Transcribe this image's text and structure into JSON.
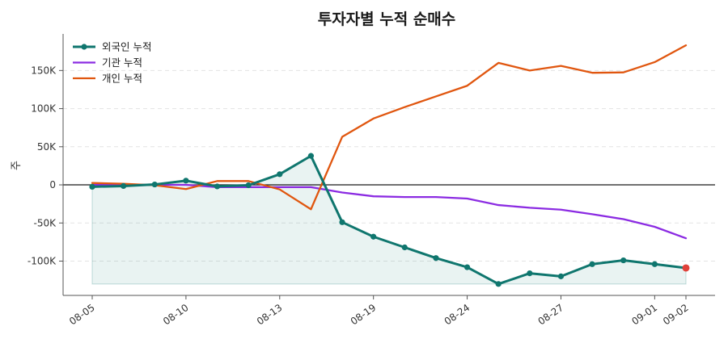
{
  "chart_data": {
    "type": "line",
    "title": "투자자별 누적 순매수",
    "xlabel": "",
    "ylabel": "주",
    "ylim": [
      -145000,
      198000
    ],
    "yticks": [
      -100000,
      -50000,
      0,
      50000,
      100000,
      150000
    ],
    "ytick_labels": [
      "-100K",
      "-50K",
      "0",
      "50K",
      "100K",
      "150K"
    ],
    "x": [
      "08-05",
      "08-06",
      "08-07",
      "08-10",
      "08-11",
      "08-12",
      "08-13",
      "08-14",
      "08-17",
      "08-19",
      "08-20",
      "08-21",
      "08-24",
      "08-25",
      "08-26",
      "08-27",
      "08-28",
      "08-31",
      "09-01",
      "09-02"
    ],
    "xticks": [
      "08-05",
      "08-10",
      "08-13",
      "08-19",
      "08-24",
      "08-27",
      "09-01",
      "09-02"
    ],
    "legend_position": "top-left",
    "grid": true,
    "zero_line": true,
    "series": [
      {
        "name": "외국인 누적",
        "color": "#0f766e",
        "markers": true,
        "fill_area": true,
        "highlight_last_color": "#e0413a",
        "values": [
          -2500,
          -1500,
          500,
          5500,
          -2000,
          -500,
          14000,
          38000,
          -49000,
          -68000,
          -82000,
          -96000,
          -108000,
          -130000,
          -116000,
          -120000,
          -104000,
          -99000,
          -104000,
          -109000
        ]
      },
      {
        "name": "기관 누적",
        "color": "#8b2be2",
        "markers": false,
        "values": [
          0,
          0,
          0,
          0,
          -3000,
          -3000,
          -3000,
          -3000,
          -10000,
          -15000,
          -16000,
          -16000,
          -18000,
          -26500,
          -30000,
          -32500,
          -38500,
          -45000,
          -55000,
          -70000
        ]
      },
      {
        "name": "개인 누적",
        "color": "#e0560f",
        "markers": false,
        "values": [
          2500,
          1500,
          -500,
          -5500,
          5000,
          5000,
          -6000,
          -32000,
          63000,
          87000,
          102000,
          116000,
          130000,
          160000,
          150000,
          156000,
          147000,
          147500,
          161000,
          183000
        ]
      }
    ]
  }
}
